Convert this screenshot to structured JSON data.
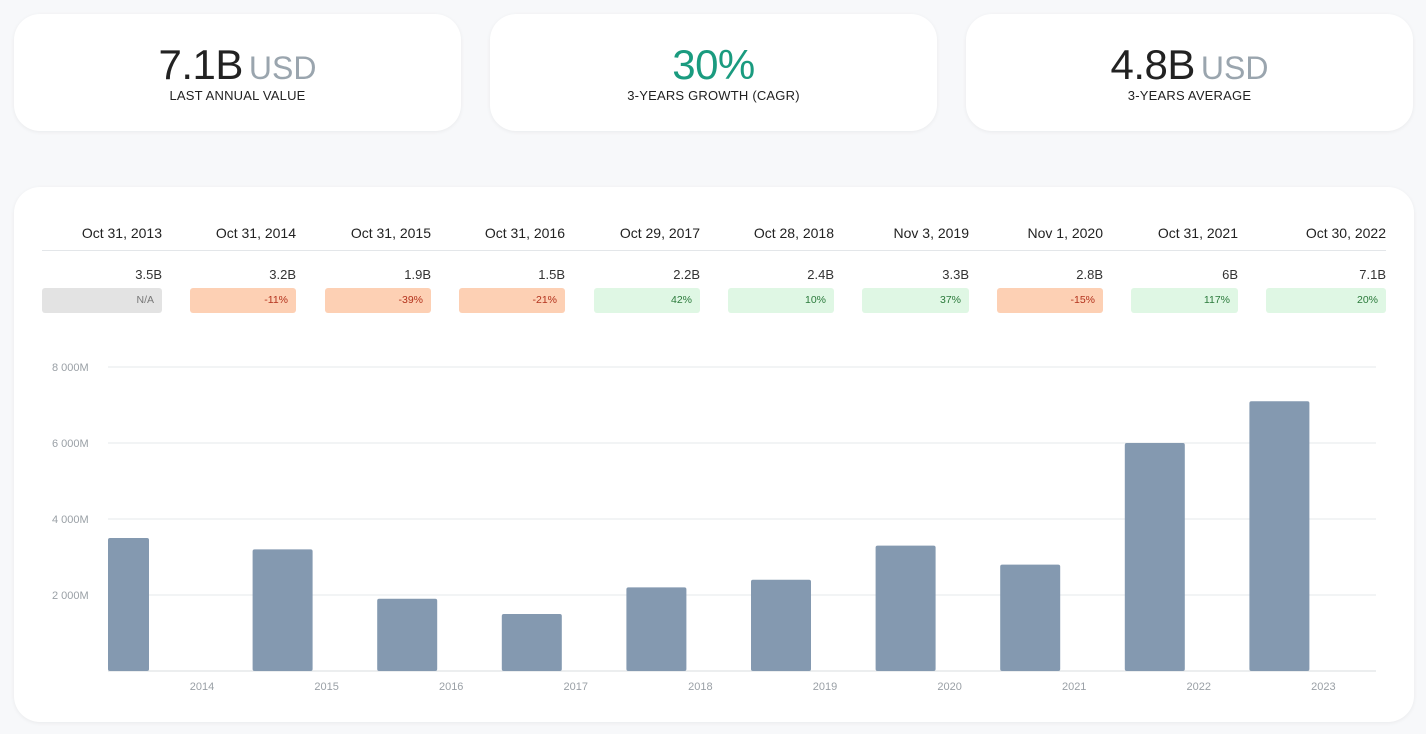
{
  "kpis": [
    {
      "value": "7.1B",
      "unit": "USD",
      "label": "LAST ANNUAL VALUE"
    },
    {
      "value": "30%",
      "unit": "",
      "label": "3-YEARS GROWTH (CAGR)"
    },
    {
      "value": "4.8B",
      "unit": "USD",
      "label": "3-YEARS AVERAGE"
    }
  ],
  "colors": {
    "growth": "#1a9b7f",
    "bar": "#8499b0",
    "negative_bg": "#fdd0b4",
    "positive_bg": "#dff7e4",
    "na_bg": "#e3e3e3"
  },
  "table": {
    "columns": [
      {
        "date": "Oct 31, 2013",
        "amount": "3.5B",
        "change": "N/A",
        "status": "na"
      },
      {
        "date": "Oct 31, 2014",
        "amount": "3.2B",
        "change": "-11%",
        "status": "neg"
      },
      {
        "date": "Oct 31, 2015",
        "amount": "1.9B",
        "change": "-39%",
        "status": "neg"
      },
      {
        "date": "Oct 31, 2016",
        "amount": "1.5B",
        "change": "-21%",
        "status": "neg"
      },
      {
        "date": "Oct 29, 2017",
        "amount": "2.2B",
        "change": "42%",
        "status": "pos"
      },
      {
        "date": "Oct 28, 2018",
        "amount": "2.4B",
        "change": "10%",
        "status": "pos"
      },
      {
        "date": "Nov 3, 2019",
        "amount": "3.3B",
        "change": "37%",
        "status": "pos"
      },
      {
        "date": "Nov 1, 2020",
        "amount": "2.8B",
        "change": "-15%",
        "status": "neg"
      },
      {
        "date": "Oct 31, 2021",
        "amount": "6B",
        "change": "117%",
        "status": "pos"
      },
      {
        "date": "Oct 30, 2022",
        "amount": "7.1B",
        "change": "20%",
        "status": "pos"
      }
    ]
  },
  "chart_data": {
    "type": "bar",
    "categories": [
      "2013",
      "2014",
      "2015",
      "2016",
      "2017",
      "2018",
      "2019",
      "2020",
      "2021",
      "2022"
    ],
    "values": [
      3.5,
      3.2,
      1.9,
      1.5,
      2.2,
      2.4,
      3.3,
      2.8,
      6.0,
      7.1
    ],
    "value_unit": "billions USD",
    "x_ticks": [
      "2014",
      "2015",
      "2016",
      "2017",
      "2018",
      "2019",
      "2020",
      "2021",
      "2022",
      "2023"
    ],
    "y_ticks": [
      {
        "value": 2000,
        "label": "2 000M"
      },
      {
        "value": 4000,
        "label": "4 000M"
      },
      {
        "value": 6000,
        "label": "6 000M"
      },
      {
        "value": 8000,
        "label": "8 000M"
      }
    ],
    "ylim": [
      0,
      8000
    ],
    "y_unit": "millions USD",
    "grid": true,
    "title": "",
    "xlabel": "",
    "ylabel": ""
  }
}
